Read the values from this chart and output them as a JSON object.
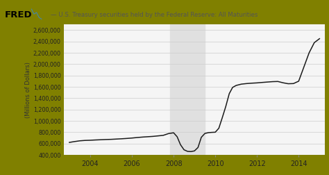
{
  "title": "— U.S. Treasury securities held by the Federal Reserve: All Maturities",
  "ylabel": "(Millions of Dollars)",
  "background_outer": "#808000",
  "background_plot": "#f5f5f5",
  "shade_color": "#e0e0e0",
  "shade_start": 2007.83,
  "shade_end": 2009.5,
  "line_color": "#1a1a1a",
  "line_width": 1.1,
  "ylim": [
    400000,
    2700000
  ],
  "yticks": [
    400000,
    600000,
    800000,
    1000000,
    1200000,
    1400000,
    1600000,
    1800000,
    2000000,
    2200000,
    2400000,
    2600000
  ],
  "ytick_labels": [
    "400,000",
    "600,000",
    "800,000",
    "1,000,000",
    "1,200,000",
    "1,400,000",
    "1,600,000",
    "1,800,000",
    "2,000,000",
    "2,200,000",
    "2,400,000",
    "2,600,000"
  ],
  "xticks": [
    2004,
    2006,
    2008,
    2010,
    2012,
    2014
  ],
  "xlim": [
    2002.75,
    2015.25
  ],
  "grid_color": "#cccccc",
  "data_x": [
    2003.0,
    2003.25,
    2003.5,
    2003.75,
    2004.0,
    2004.25,
    2004.5,
    2004.75,
    2005.0,
    2005.25,
    2005.5,
    2005.75,
    2006.0,
    2006.25,
    2006.5,
    2006.75,
    2007.0,
    2007.25,
    2007.5,
    2007.75,
    2008.0,
    2008.17,
    2008.33,
    2008.5,
    2008.67,
    2008.83,
    2009.0,
    2009.17,
    2009.33,
    2009.5,
    2009.67,
    2009.83,
    2010.0,
    2010.17,
    2010.33,
    2010.5,
    2010.67,
    2010.83,
    2011.0,
    2011.25,
    2011.5,
    2011.75,
    2012.0,
    2012.25,
    2012.5,
    2012.75,
    2013.0,
    2013.25,
    2013.5,
    2013.75,
    2014.0,
    2014.25,
    2014.5,
    2014.75,
    2015.0
  ],
  "data_y": [
    620000,
    635000,
    648000,
    655000,
    658000,
    663000,
    667000,
    671000,
    674000,
    679000,
    684000,
    690000,
    697000,
    706000,
    714000,
    720000,
    726000,
    735000,
    744000,
    775000,
    790000,
    720000,
    580000,
    490000,
    462000,
    458000,
    470000,
    530000,
    710000,
    778000,
    792000,
    797000,
    800000,
    870000,
    1050000,
    1250000,
    1480000,
    1590000,
    1625000,
    1648000,
    1658000,
    1665000,
    1670000,
    1678000,
    1685000,
    1692000,
    1695000,
    1672000,
    1655000,
    1658000,
    1700000,
    1950000,
    2200000,
    2380000,
    2450000
  ]
}
